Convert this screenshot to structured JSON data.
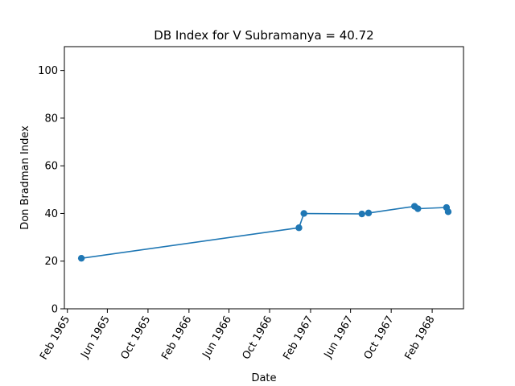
{
  "chart_data": {
    "type": "line",
    "title": "DB Index for V Subramanya = 40.72",
    "xlabel": "Date",
    "ylabel": "Don Bradman Index",
    "xlim": [
      "1965-01-23",
      "1968-05-05"
    ],
    "ylim": [
      0,
      110
    ],
    "yticks": [
      0,
      20,
      40,
      60,
      80,
      100
    ],
    "xticks": [
      {
        "date": "1965-02-01",
        "label": "Feb 1965"
      },
      {
        "date": "1965-06-01",
        "label": "Jun 1965"
      },
      {
        "date": "1965-10-01",
        "label": "Oct 1965"
      },
      {
        "date": "1966-02-01",
        "label": "Feb 1966"
      },
      {
        "date": "1966-06-01",
        "label": "Jun 1966"
      },
      {
        "date": "1966-10-01",
        "label": "Oct 1966"
      },
      {
        "date": "1967-02-01",
        "label": "Feb 1967"
      },
      {
        "date": "1967-06-01",
        "label": "Jun 1967"
      },
      {
        "date": "1967-10-01",
        "label": "Oct 1967"
      },
      {
        "date": "1968-02-01",
        "label": "Feb 1968"
      }
    ],
    "series": [
      {
        "color": "#1f77b4",
        "marker": "circle",
        "points": [
          {
            "x": "1965-03-15",
            "y": 21.2
          },
          {
            "x": "1966-12-28",
            "y": 34.0
          },
          {
            "x": "1967-01-12",
            "y": 40.0
          },
          {
            "x": "1967-07-05",
            "y": 39.8
          },
          {
            "x": "1967-07-25",
            "y": 40.2
          },
          {
            "x": "1967-12-10",
            "y": 43.0
          },
          {
            "x": "1967-12-20",
            "y": 42.0
          },
          {
            "x": "1968-03-15",
            "y": 42.5
          },
          {
            "x": "1968-03-20",
            "y": 40.72
          }
        ]
      }
    ],
    "grid": false,
    "legend": "none"
  }
}
